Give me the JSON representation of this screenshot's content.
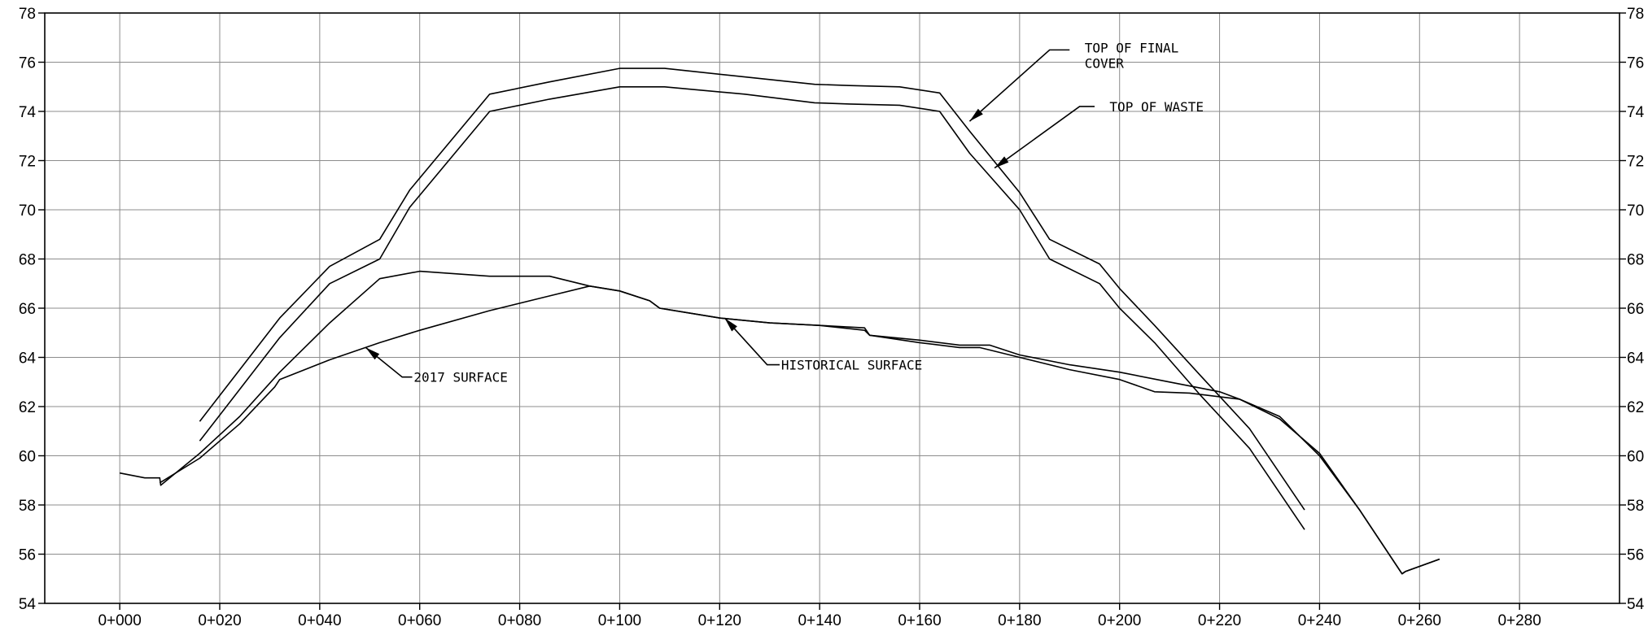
{
  "chart_data": {
    "type": "line",
    "title": "",
    "xlabel": "",
    "ylabel": "",
    "xlim": [
      -15,
      300
    ],
    "ylim": [
      54,
      78
    ],
    "xticks": [
      0,
      20,
      40,
      60,
      80,
      100,
      120,
      140,
      160,
      180,
      200,
      220,
      240,
      260,
      280
    ],
    "xtick_labels": [
      "0+000",
      "0+020",
      "0+040",
      "0+060",
      "0+080",
      "0+100",
      "0+120",
      "0+140",
      "0+160",
      "0+180",
      "0+200",
      "0+220",
      "0+240",
      "0+260",
      "0+280"
    ],
    "yticks": [
      54,
      56,
      58,
      60,
      62,
      64,
      66,
      68,
      70,
      72,
      74,
      76,
      78
    ],
    "ytick_labels": [
      "54",
      "56",
      "58",
      "60",
      "62",
      "64",
      "66",
      "68",
      "70",
      "72",
      "74",
      "76",
      "78"
    ],
    "grid": true,
    "series": [
      {
        "name": "TOP OF FINAL COVER",
        "x": [
          16,
          24,
          32,
          42,
          52,
          58,
          74,
          86,
          100,
          109,
          125,
          139,
          146,
          156,
          164,
          170,
          180,
          186,
          196,
          200,
          207,
          216,
          226,
          237
        ],
        "y": [
          61.4,
          63.5,
          65.6,
          67.7,
          68.8,
          70.8,
          74.7,
          75.2,
          75.75,
          75.75,
          75.4,
          75.1,
          75.05,
          75.0,
          74.75,
          73.2,
          70.7,
          68.8,
          67.8,
          66.8,
          65.3,
          63.3,
          61.1,
          57.8
        ]
      },
      {
        "name": "TOP OF WASTE",
        "x": [
          16,
          24,
          32,
          42,
          52,
          58,
          74,
          86,
          100,
          109,
          125,
          139,
          146,
          156,
          164,
          170,
          180,
          186,
          196,
          200,
          207,
          216,
          226,
          237
        ],
        "y": [
          60.6,
          62.7,
          64.8,
          67.0,
          68.0,
          70.1,
          74.0,
          74.5,
          75.0,
          75.0,
          74.7,
          74.35,
          74.3,
          74.25,
          74.0,
          72.3,
          70.0,
          68.0,
          67.0,
          66.0,
          64.6,
          62.5,
          60.3,
          57.0
        ]
      },
      {
        "name": "2017 SURFACE",
        "x": [
          0,
          5,
          8,
          8.2,
          16,
          24,
          32,
          42,
          52,
          60,
          74,
          86,
          94,
          100,
          106,
          108,
          120,
          130,
          140,
          149,
          150,
          160,
          168,
          172,
          174,
          180,
          190,
          200,
          207,
          214,
          224,
          232,
          240,
          248,
          256.5,
          257.2,
          264
        ],
        "y": [
          59.3,
          59.1,
          59.1,
          58.8,
          60.1,
          61.6,
          63.4,
          65.4,
          67.2,
          67.5,
          67.3,
          67.3,
          66.9,
          66.7,
          66.3,
          66.0,
          65.6,
          65.4,
          65.3,
          65.1,
          64.9,
          64.6,
          64.4,
          64.4,
          64.3,
          64.0,
          63.5,
          63.1,
          62.6,
          62.55,
          62.3,
          61.6,
          60.0,
          57.8,
          55.2,
          55.3,
          55.8
        ]
      },
      {
        "name": "HISTORICAL SURFACE",
        "x": [
          8,
          16,
          24,
          31,
          32,
          42,
          52,
          60,
          74,
          86,
          94,
          100,
          106,
          108,
          120,
          130,
          140,
          149,
          150,
          160,
          168,
          174,
          180,
          190,
          200,
          210,
          220,
          224,
          232,
          240,
          248,
          256.5,
          257.2,
          264
        ],
        "y": [
          58.9,
          59.9,
          61.3,
          62.8,
          63.1,
          63.9,
          64.6,
          65.1,
          65.9,
          66.5,
          66.9,
          66.7,
          66.3,
          66.0,
          65.6,
          65.4,
          65.3,
          65.2,
          64.9,
          64.7,
          64.5,
          64.5,
          64.1,
          63.7,
          63.4,
          63.0,
          62.6,
          62.3,
          61.5,
          60.1,
          57.8,
          55.2,
          55.3,
          55.8
        ]
      }
    ],
    "annotations": [
      {
        "lines": [
          "TOP OF FINAL",
          "COVER"
        ],
        "target": [
          170,
          73.6
        ],
        "elbow": [
          186,
          76.5
        ],
        "end": [
          190,
          76.5
        ],
        "text_at": [
          193,
          76.6
        ],
        "anchor": "start"
      },
      {
        "lines": [
          "TOP OF WASTE"
        ],
        "target": [
          175,
          71.7
        ],
        "elbow": [
          192,
          74.2
        ],
        "end": [
          195,
          74.2
        ],
        "text_at": [
          198,
          74.2
        ],
        "anchor": "start"
      },
      {
        "lines": [
          "2017 SURFACE"
        ],
        "target": [
          49.2,
          64.4
        ],
        "elbow": [
          56.5,
          63.2
        ],
        "end": [
          58.5,
          63.2
        ],
        "text_at": [
          58.8,
          63.2
        ],
        "anchor": "start"
      },
      {
        "lines": [
          "HISTORICAL SURFACE"
        ],
        "target": [
          121,
          65.6
        ],
        "elbow": [
          129.5,
          63.7
        ],
        "end": [
          132,
          63.7
        ],
        "text_at": [
          132.3,
          63.7
        ],
        "anchor": "start"
      }
    ]
  }
}
